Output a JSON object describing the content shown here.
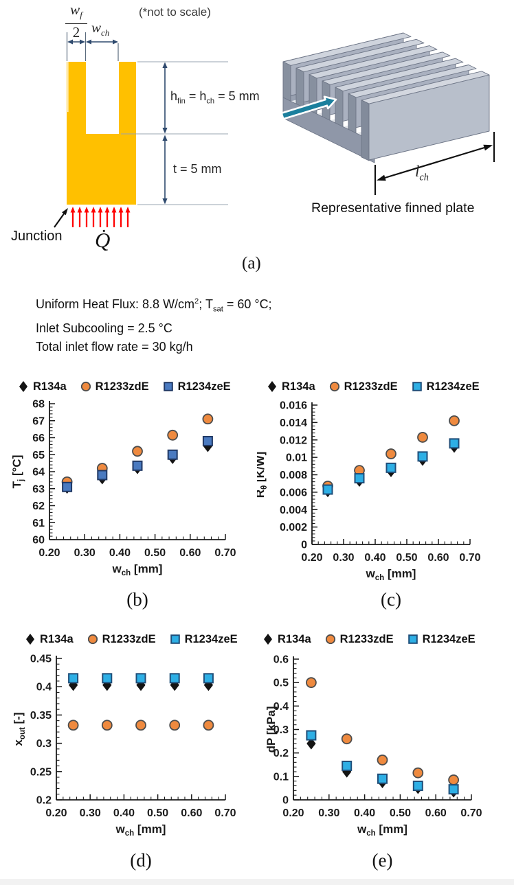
{
  "panel_a": {
    "not_to_scale": "(*not to scale)",
    "wf_num_main": "w",
    "wf_num_sub": "f",
    "wf_den": "2",
    "wch_main": "w",
    "wch_sub": "ch",
    "hfin_p1": "h",
    "hfin_s1": "fin",
    "hfin_p2": " = h",
    "hfin_s2": "ch",
    "hfin_p3": " = 5 mm",
    "t_label": "t = 5 mm",
    "junction_label": "Junction",
    "q_label": "Q̇",
    "lch_main": "l",
    "lch_sub": "ch",
    "plate_caption": "Representative finned plate",
    "caption": "(a)"
  },
  "conditions": {
    "l1a": "Uniform Heat Flux: 8.8 W/cm",
    "l1sup": "2",
    "l1b": "; T",
    "l1sub": "sat",
    "l1c": " = 60 °C;",
    "l2": "Inlet Subcooling = 2.5 °C",
    "l3": "Total inlet flow rate  = 30 kg/h"
  },
  "colors": {
    "channel_block": "#ffc000",
    "heat_flux_arrows": "#ff0000",
    "flow_arrow": "#1b7f9d",
    "dimension_lines": "#2f4a6e",
    "plate_gray": "#aab1c0"
  },
  "chart_data": [
    {
      "type": "scatter",
      "caption": "(b)",
      "legend_position": "top",
      "grid": false,
      "xlabel": {
        "main": "w",
        "sub": "ch",
        "rest": " [mm]"
      },
      "ylabel": {
        "main": "T",
        "sub": "j",
        "rest": " [°C]"
      },
      "xlim": [
        0.2,
        0.7
      ],
      "ylim": [
        60,
        68
      ],
      "xticks": [
        {
          "v": 0.2,
          "label": "0.20"
        },
        {
          "v": 0.3,
          "label": "0.30"
        },
        {
          "v": 0.4,
          "label": "0.40"
        },
        {
          "v": 0.5,
          "label": "0.50"
        },
        {
          "v": 0.6,
          "label": "0.60"
        },
        {
          "v": 0.7,
          "label": "0.70"
        }
      ],
      "yticks": [
        {
          "v": 60,
          "label": "60"
        },
        {
          "v": 61,
          "label": "61"
        },
        {
          "v": 62,
          "label": "62"
        },
        {
          "v": 63,
          "label": "63"
        },
        {
          "v": 64,
          "label": "64"
        },
        {
          "v": 65,
          "label": "65"
        },
        {
          "v": 66,
          "label": "66"
        },
        {
          "v": 67,
          "label": "67"
        },
        {
          "v": 68,
          "label": "68"
        }
      ],
      "x_minor_step": 0.02,
      "y_minor_step": 0.2,
      "x": [
        0.25,
        0.35,
        0.45,
        0.55,
        0.65
      ],
      "series": [
        {
          "name": "R134a",
          "marker": "diamond",
          "fill": "#141414",
          "stroke": "#141414",
          "values": [
            63.05,
            63.6,
            64.2,
            64.8,
            65.5
          ]
        },
        {
          "name": "R1233zdE",
          "marker": "circle",
          "fill": "#ef8a3f",
          "stroke": "#4d4d4d",
          "values": [
            63.4,
            64.2,
            65.2,
            66.15,
            67.1
          ]
        },
        {
          "name": "R1234zeE",
          "marker": "square",
          "fill": "#4a7ac0",
          "stroke": "#203864",
          "values": [
            63.1,
            63.8,
            64.35,
            65.0,
            65.8
          ]
        }
      ]
    },
    {
      "type": "scatter",
      "caption": "(c)",
      "legend_position": "top",
      "grid": false,
      "xlabel": {
        "main": "w",
        "sub": "ch",
        "rest": " [mm]"
      },
      "ylabel": {
        "main": "R",
        "sub": "θ",
        "rest": " [K/W]"
      },
      "xlim": [
        0.2,
        0.7
      ],
      "ylim": [
        0,
        0.016
      ],
      "xticks": [
        {
          "v": 0.2,
          "label": "0.20"
        },
        {
          "v": 0.3,
          "label": "0.30"
        },
        {
          "v": 0.4,
          "label": "0.40"
        },
        {
          "v": 0.5,
          "label": "0.50"
        },
        {
          "v": 0.6,
          "label": "0.60"
        },
        {
          "v": 0.7,
          "label": "0.70"
        }
      ],
      "yticks": [
        {
          "v": 0,
          "label": "0"
        },
        {
          "v": 0.002,
          "label": "0.002"
        },
        {
          "v": 0.004,
          "label": "0.004"
        },
        {
          "v": 0.006,
          "label": "0.006"
        },
        {
          "v": 0.008,
          "label": "0.008"
        },
        {
          "v": 0.01,
          "label": "0.01"
        },
        {
          "v": 0.012,
          "label": "0.012"
        },
        {
          "v": 0.014,
          "label": "0.014"
        },
        {
          "v": 0.016,
          "label": "0.016"
        }
      ],
      "x_minor_step": 0.02,
      "y_minor_step": 0.0004,
      "x": [
        0.25,
        0.35,
        0.45,
        0.55,
        0.65
      ],
      "series": [
        {
          "name": "R134a",
          "marker": "diamond",
          "fill": "#141414",
          "stroke": "#141414",
          "values": [
            0.0061,
            0.0073,
            0.0084,
            0.0097,
            0.0112
          ]
        },
        {
          "name": "R1233zdE",
          "marker": "circle",
          "fill": "#ef8a3f",
          "stroke": "#4d4d4d",
          "values": [
            0.0067,
            0.0085,
            0.0104,
            0.0123,
            0.0142
          ]
        },
        {
          "name": "R1234zeE",
          "marker": "square",
          "fill": "#2eafe5",
          "stroke": "#1f4e79",
          "values": [
            0.0063,
            0.0076,
            0.0088,
            0.0101,
            0.0116
          ]
        }
      ]
    },
    {
      "type": "scatter",
      "caption": "(d)",
      "legend_position": "top",
      "grid": false,
      "xlabel": {
        "main": "w",
        "sub": "ch",
        "rest": " [mm]"
      },
      "ylabel": {
        "main": "x",
        "sub": "out",
        "rest": " [-]"
      },
      "xlim": [
        0.2,
        0.7
      ],
      "ylim": [
        0.2,
        0.45
      ],
      "xticks": [
        {
          "v": 0.2,
          "label": "0.20"
        },
        {
          "v": 0.3,
          "label": "0.30"
        },
        {
          "v": 0.4,
          "label": "0.40"
        },
        {
          "v": 0.5,
          "label": "0.50"
        },
        {
          "v": 0.6,
          "label": "0.60"
        },
        {
          "v": 0.7,
          "label": "0.70"
        }
      ],
      "yticks": [
        {
          "v": 0.2,
          "label": "0.2"
        },
        {
          "v": 0.25,
          "label": "0.25"
        },
        {
          "v": 0.3,
          "label": "0.3"
        },
        {
          "v": 0.35,
          "label": "0.35"
        },
        {
          "v": 0.4,
          "label": "0.4"
        },
        {
          "v": 0.45,
          "label": "0.45"
        }
      ],
      "x_minor_step": 0.02,
      "y_minor_step": 0.01,
      "x": [
        0.25,
        0.35,
        0.45,
        0.55,
        0.65
      ],
      "series": [
        {
          "name": "R134a",
          "marker": "diamond",
          "fill": "#141414",
          "stroke": "#141414",
          "values": [
            0.403,
            0.403,
            0.403,
            0.403,
            0.403
          ]
        },
        {
          "name": "R1233zdE",
          "marker": "circle",
          "fill": "#ef8a3f",
          "stroke": "#4d4d4d",
          "values": [
            0.332,
            0.332,
            0.332,
            0.332,
            0.332
          ]
        },
        {
          "name": "R1234zeE",
          "marker": "square",
          "fill": "#2eafe5",
          "stroke": "#1f4e79",
          "values": [
            0.415,
            0.415,
            0.415,
            0.415,
            0.415
          ]
        }
      ]
    },
    {
      "type": "scatter",
      "caption": "(e)",
      "legend_position": "top",
      "grid": false,
      "xlabel": {
        "main": "w",
        "sub": "ch",
        "rest": " [mm]"
      },
      "ylabel": {
        "main": "dP",
        "sub": "",
        "rest": " [kPa]"
      },
      "xlim": [
        0.2,
        0.7
      ],
      "ylim": [
        0,
        0.6
      ],
      "xticks": [
        {
          "v": 0.2,
          "label": "0.20"
        },
        {
          "v": 0.3,
          "label": "0.30"
        },
        {
          "v": 0.4,
          "label": "0.40"
        },
        {
          "v": 0.5,
          "label": "0.50"
        },
        {
          "v": 0.6,
          "label": "0.60"
        },
        {
          "v": 0.7,
          "label": "0.70"
        }
      ],
      "yticks": [
        {
          "v": 0,
          "label": "0"
        },
        {
          "v": 0.1,
          "label": "0.1"
        },
        {
          "v": 0.2,
          "label": "0.2"
        },
        {
          "v": 0.3,
          "label": "0.3"
        },
        {
          "v": 0.4,
          "label": "0.4"
        },
        {
          "v": 0.5,
          "label": "0.5"
        },
        {
          "v": 0.6,
          "label": "0.6"
        }
      ],
      "x_minor_step": 0.02,
      "y_minor_step": 0.02,
      "x": [
        0.25,
        0.35,
        0.45,
        0.55,
        0.65
      ],
      "series": [
        {
          "name": "R134a",
          "marker": "diamond",
          "fill": "#141414",
          "stroke": "#141414",
          "values": [
            0.24,
            0.12,
            0.075,
            0.05,
            0.035
          ]
        },
        {
          "name": "R1233zdE",
          "marker": "circle",
          "fill": "#ef8a3f",
          "stroke": "#4d4d4d",
          "values": [
            0.5,
            0.26,
            0.17,
            0.115,
            0.085
          ]
        },
        {
          "name": "R1234zeE",
          "marker": "square",
          "fill": "#2eafe5",
          "stroke": "#1f4e79",
          "values": [
            0.275,
            0.145,
            0.09,
            0.06,
            0.045
          ]
        }
      ]
    }
  ]
}
